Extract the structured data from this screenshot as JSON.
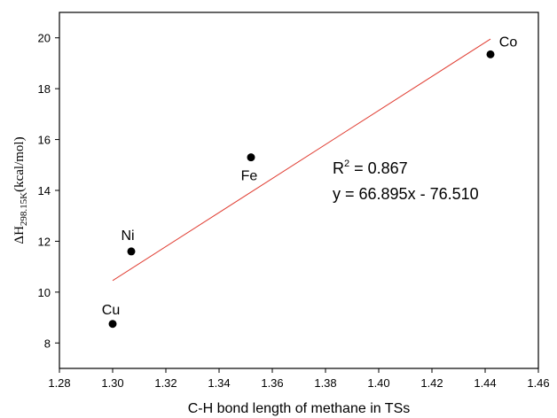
{
  "chart_data": {
    "type": "scatter",
    "title": "",
    "xlabel": "C-H bond length of methane in TSs",
    "ylabel": {
      "prefix": "ΔH",
      "subscript": "298.15K",
      "suffix": "(kcal/mol)"
    },
    "xlim": [
      1.28,
      1.46
    ],
    "ylim": [
      7,
      21
    ],
    "xticks": [
      "1.28",
      "1.30",
      "1.32",
      "1.34",
      "1.36",
      "1.38",
      "1.40",
      "1.42",
      "1.44",
      "1.46"
    ],
    "yticks": [
      "8",
      "10",
      "12",
      "14",
      "16",
      "18",
      "20"
    ],
    "points": [
      {
        "label": "Cu",
        "x": 1.3,
        "y": 8.75
      },
      {
        "label": "Ni",
        "x": 1.307,
        "y": 11.6
      },
      {
        "label": "Fe",
        "x": 1.352,
        "y": 15.3
      },
      {
        "label": "Co",
        "x": 1.442,
        "y": 19.35
      }
    ],
    "trendline": {
      "slope": 66.895,
      "intercept": -76.51,
      "x_range": [
        1.3,
        1.442
      ],
      "color": "#e03c31"
    },
    "annotation": {
      "r2_label": "R",
      "r2_sup": "2",
      "r2_value": " = 0.867",
      "equation": "y = 66.895x - 76.510"
    },
    "grid": false,
    "legend": "none"
  }
}
